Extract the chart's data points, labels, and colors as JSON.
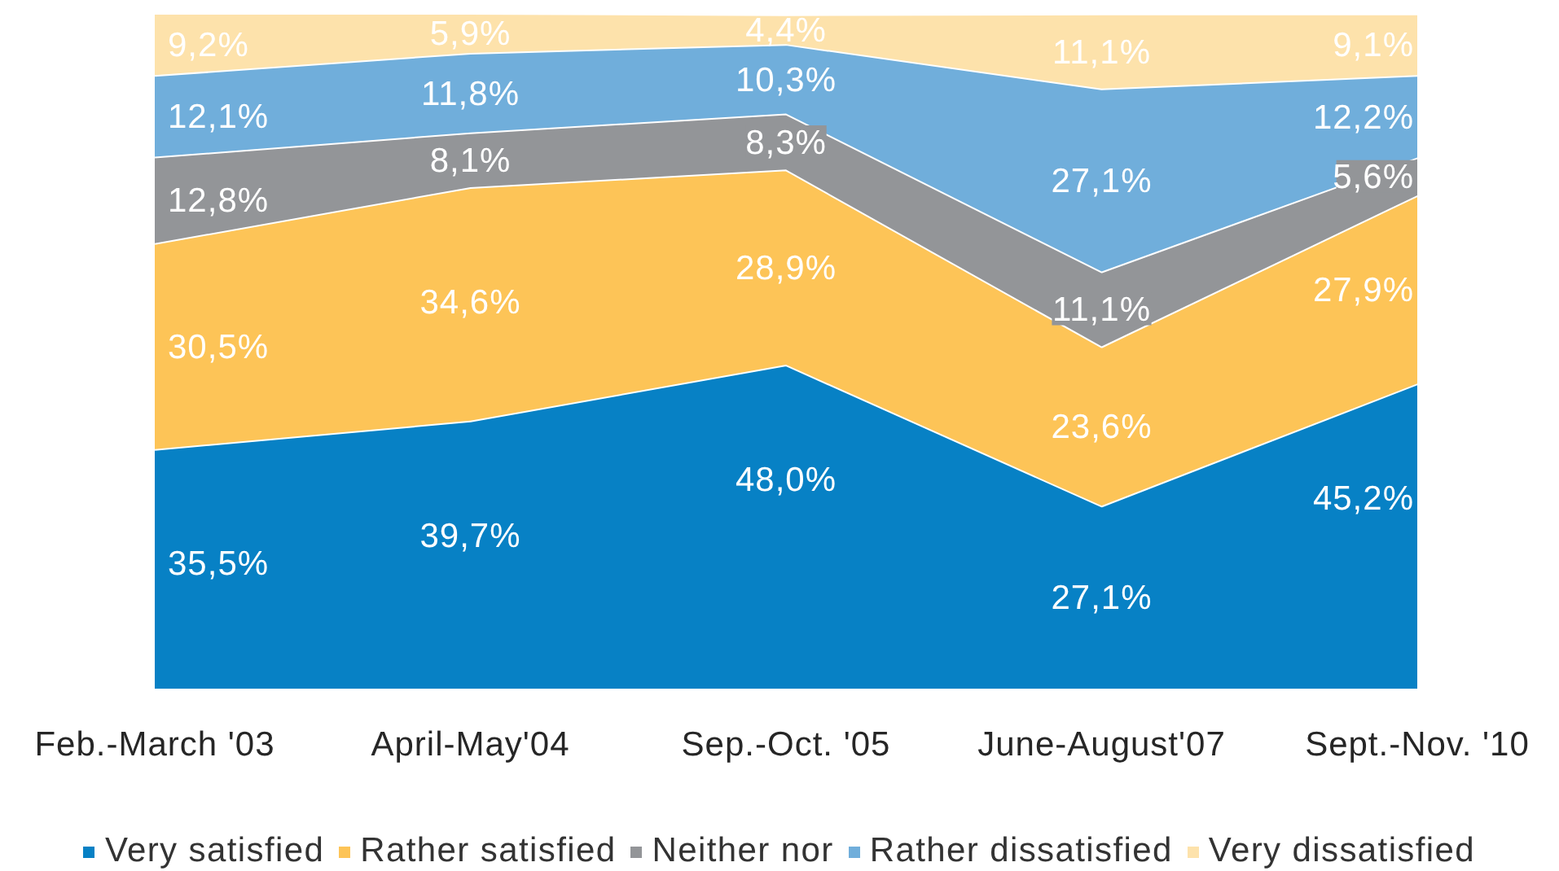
{
  "chart_data": {
    "type": "area",
    "stacked": true,
    "categories": [
      "Feb.-March '03",
      "April-May'04",
      "Sep.-Oct. '05",
      "June-August'07",
      "Sept.-Nov. '10"
    ],
    "series": [
      {
        "name": "Very satisfied",
        "color": "#0781c5",
        "values": [
          35.5,
          39.7,
          48.0,
          27.1,
          45.2
        ],
        "value_labels": [
          "35,5%",
          "39,7%",
          "48,0%",
          "27,1%",
          "45,2%"
        ]
      },
      {
        "name": "Rather satisfied",
        "color": "#fdc457",
        "values": [
          30.5,
          34.6,
          28.9,
          23.6,
          27.9
        ],
        "value_labels": [
          "30,5%",
          "34,6%",
          "28,9%",
          "23,6%",
          "27,9%"
        ]
      },
      {
        "name": "Neither nor",
        "color": "#939598",
        "values": [
          12.8,
          8.1,
          8.3,
          11.1,
          5.6
        ],
        "value_labels": [
          "12,8%",
          "8,1%",
          "8,3%",
          "11,1%",
          "5,6%"
        ]
      },
      {
        "name": "Rather dissatisfied",
        "color": "#70aedb",
        "values": [
          12.1,
          11.8,
          10.3,
          27.1,
          12.2
        ],
        "value_labels": [
          "12,1%",
          "11,8%",
          "10,3%",
          "27,1%",
          "12,2%"
        ]
      },
      {
        "name": "Very dissatisfied",
        "color": "#fde2ab",
        "values": [
          9.2,
          5.9,
          4.4,
          11.1,
          9.1
        ],
        "value_labels": [
          "9,2%",
          "5,9%",
          "4,4%",
          "11,1%",
          "9,1%"
        ]
      }
    ],
    "tick_labels": "x",
    "legend": "bottom"
  }
}
